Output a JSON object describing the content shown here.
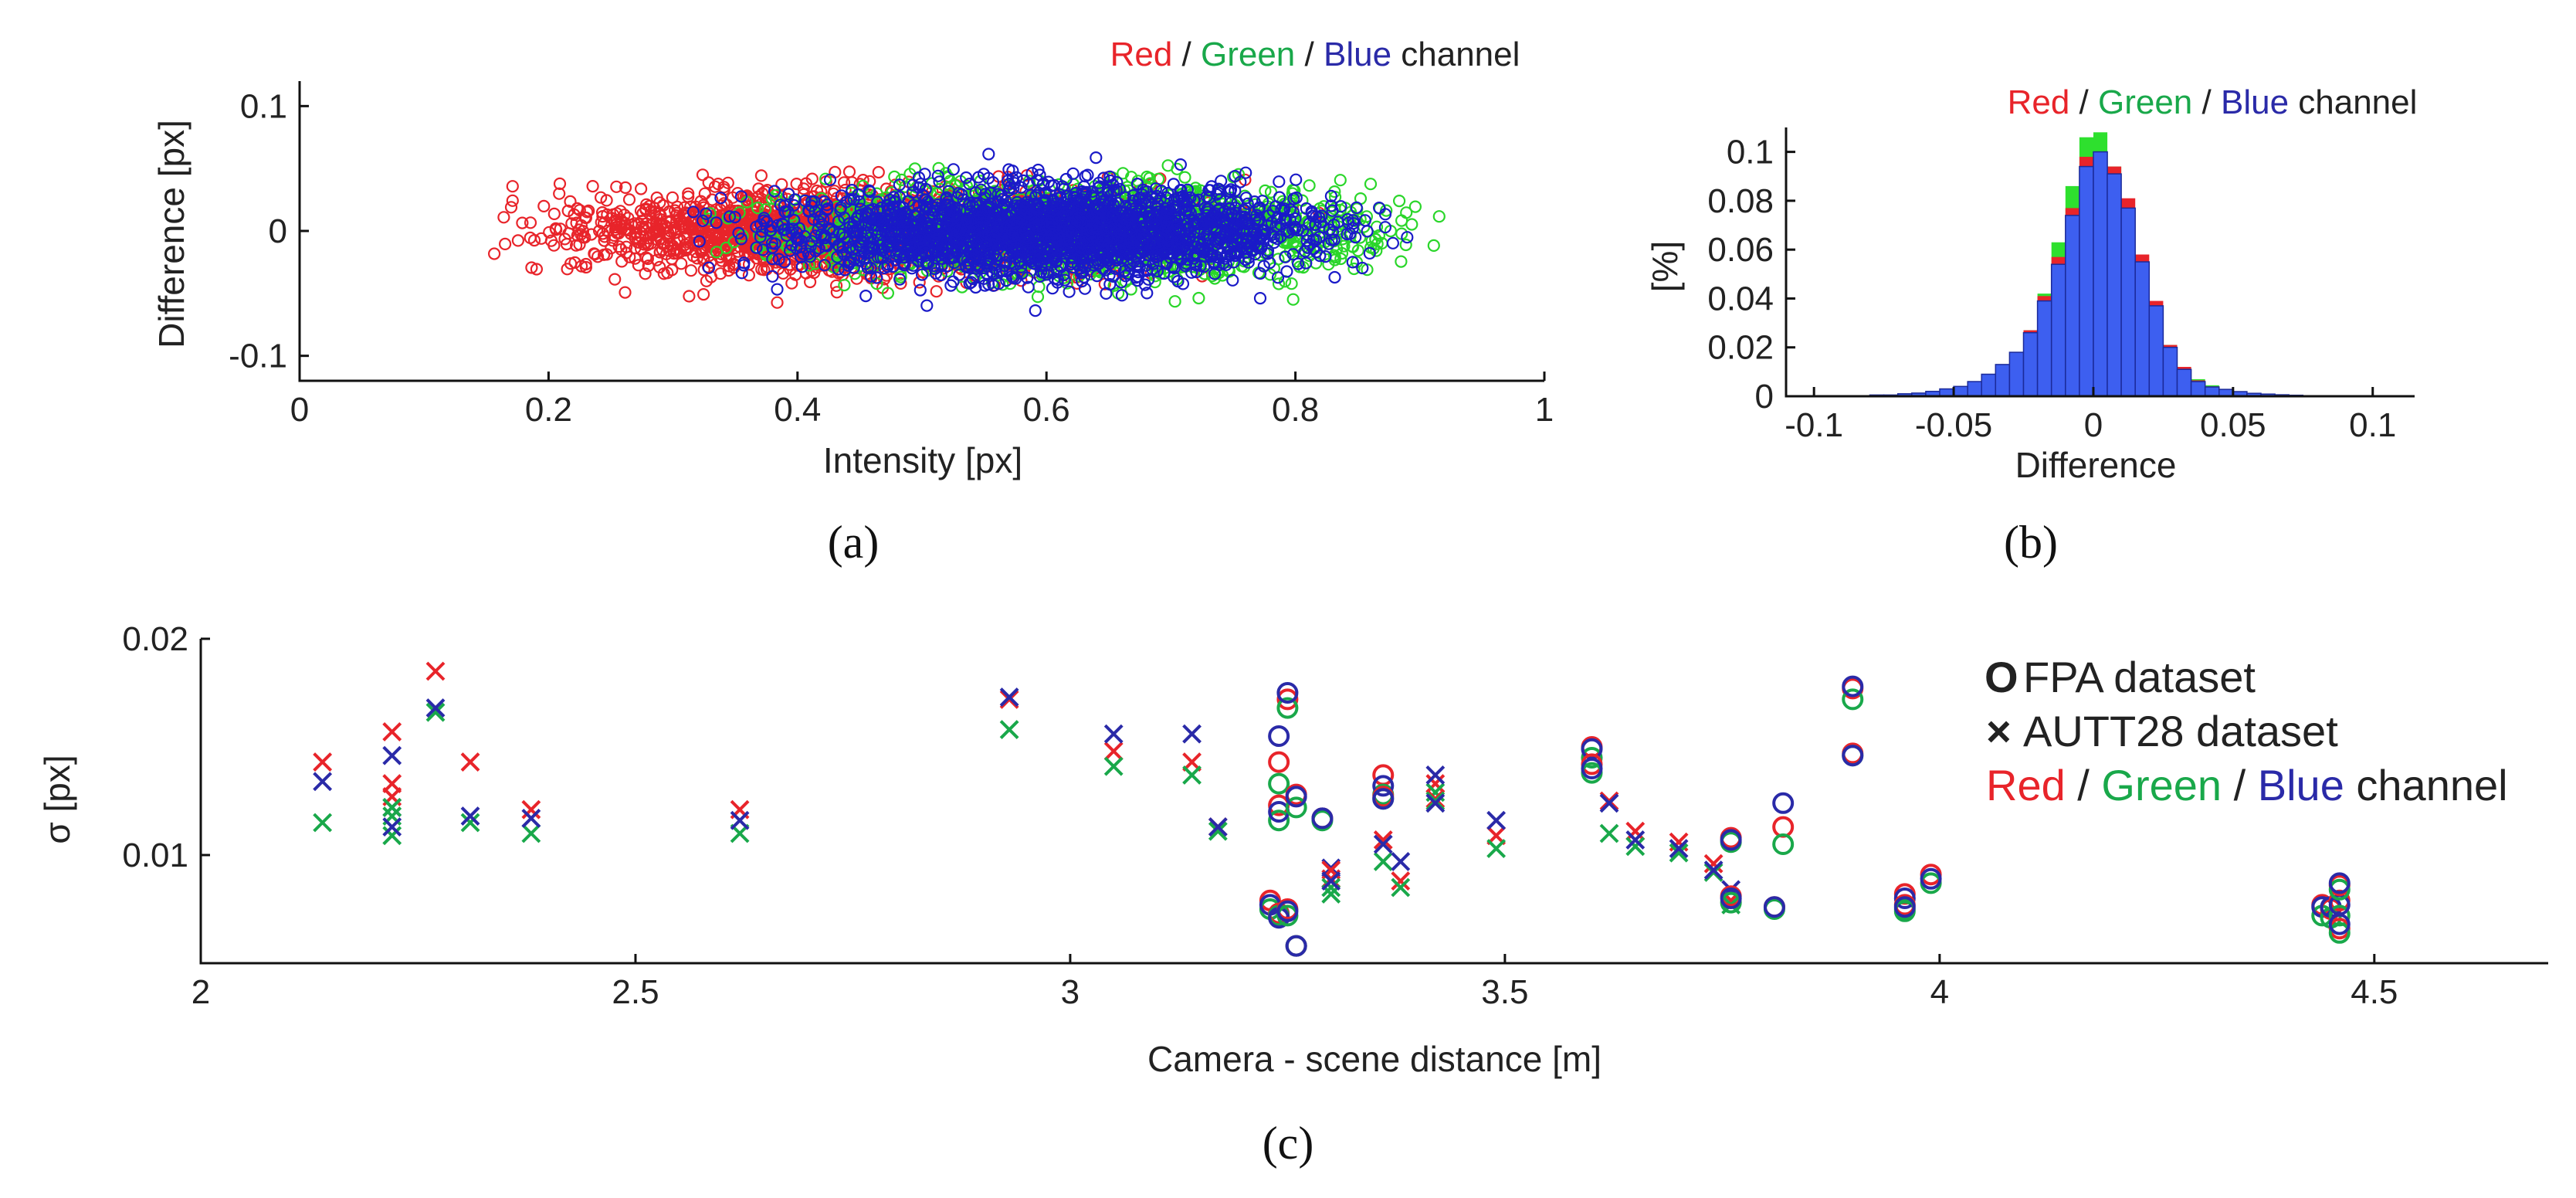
{
  "chart_data": [
    {
      "id": "a",
      "type": "scatter",
      "panel_label": "(a)",
      "title_parts": [
        {
          "text": "Red",
          "color": "#e8242a"
        },
        {
          "text": " / ",
          "color": "#222222"
        },
        {
          "text": "Green",
          "color": "#19a84a"
        },
        {
          "text": " / ",
          "color": "#222222"
        },
        {
          "text": "Blue",
          "color": "#2a2aa8"
        },
        {
          "text": " channel",
          "color": "#222222"
        }
      ],
      "xlabel": "Intensity [px]",
      "ylabel": "Difference [px]",
      "xlim": [
        0,
        1
      ],
      "ylim": [
        -0.12,
        0.12
      ],
      "xticks": [
        0,
        0.2,
        0.4,
        0.6,
        0.8,
        1
      ],
      "xtick_labels": [
        "0",
        "0.2",
        "0.4",
        "0.6",
        "0.8",
        "1"
      ],
      "yticks": [
        -0.1,
        0,
        0.1
      ],
      "ytick_labels": [
        "-0.1",
        "0",
        "0.1"
      ],
      "marker": "circle-open",
      "series": [
        {
          "name": "Red",
          "color": "#e8242a",
          "x_range": [
            0.14,
            0.83
          ],
          "sigma": 0.017,
          "points": 2000
        },
        {
          "name": "Green",
          "color": "#2ad62a",
          "x_range": [
            0.3,
            0.95
          ],
          "sigma": 0.017,
          "points": 2000
        },
        {
          "name": "Blue",
          "color": "#1a1ac8",
          "x_range": [
            0.29,
            0.92
          ],
          "sigma": 0.018,
          "points": 2200
        }
      ]
    },
    {
      "id": "b",
      "type": "bar",
      "panel_label": "(b)",
      "title_parts": [
        {
          "text": "Red",
          "color": "#e8242a"
        },
        {
          "text": " / ",
          "color": "#222222"
        },
        {
          "text": "Green",
          "color": "#19a84a"
        },
        {
          "text": " / ",
          "color": "#222222"
        },
        {
          "text": "Blue",
          "color": "#2a2aa8"
        },
        {
          "text": " channel",
          "color": "#222222"
        }
      ],
      "xlabel": "Difference",
      "ylabel": "[%]",
      "xlim": [
        -0.11,
        0.115
      ],
      "ylim": [
        0,
        0.11
      ],
      "xticks": [
        -0.1,
        -0.05,
        0,
        0.05,
        0.1
      ],
      "xtick_labels": [
        "-0.1",
        "-0.05",
        "0",
        "0.05",
        "0.1"
      ],
      "yticks": [
        0,
        0.02,
        0.04,
        0.06,
        0.08,
        0.1
      ],
      "ytick_labels": [
        "0",
        "0.02",
        "0.04",
        "0.06",
        "0.08",
        "0.1"
      ],
      "bin_width": 0.005,
      "bin_centers": [
        -0.0775,
        -0.0725,
        -0.0675,
        -0.0625,
        -0.0575,
        -0.0525,
        -0.0475,
        -0.0425,
        -0.0375,
        -0.0325,
        -0.0275,
        -0.0225,
        -0.0175,
        -0.0125,
        -0.0075,
        -0.0025,
        0.0025,
        0.0075,
        0.0125,
        0.0175,
        0.0225,
        0.0275,
        0.0325,
        0.0375,
        0.0425,
        0.0475,
        0.0525,
        0.0575,
        0.0625,
        0.0675,
        0.0725
      ],
      "series": [
        {
          "name": "Green",
          "color": "#2ee02e",
          "values": [
            0.0006,
            0.0006,
            0.001,
            0.0014,
            0.002,
            0.003,
            0.004,
            0.006,
            0.009,
            0.013,
            0.018,
            0.027,
            0.042,
            0.063,
            0.086,
            0.106,
            0.108,
            0.094,
            0.074,
            0.052,
            0.034,
            0.021,
            0.012,
            0.007,
            0.0045,
            0.003,
            0.002,
            0.0014,
            0.001,
            0.0008,
            0.0005
          ]
        },
        {
          "name": "Red",
          "color": "#e8242a",
          "values": [
            0.0005,
            0.0005,
            0.001,
            0.0013,
            0.002,
            0.003,
            0.004,
            0.006,
            0.009,
            0.013,
            0.018,
            0.027,
            0.041,
            0.057,
            0.077,
            0.098,
            0.1,
            0.094,
            0.081,
            0.058,
            0.039,
            0.021,
            0.012,
            0.0065,
            0.004,
            0.003,
            0.002,
            0.0013,
            0.001,
            0.0007,
            0.0005
          ]
        },
        {
          "name": "Blue",
          "color": "#3d5ff0",
          "values": [
            0.0005,
            0.0005,
            0.001,
            0.0013,
            0.002,
            0.003,
            0.004,
            0.006,
            0.009,
            0.013,
            0.018,
            0.026,
            0.039,
            0.054,
            0.074,
            0.094,
            0.1,
            0.091,
            0.077,
            0.055,
            0.037,
            0.02,
            0.011,
            0.006,
            0.0038,
            0.0028,
            0.0019,
            0.0012,
            0.0009,
            0.0006,
            0.0004
          ]
        }
      ]
    },
    {
      "id": "c",
      "type": "scatter",
      "panel_label": "(c)",
      "xlabel": "Camera - scene distance [m]",
      "ylabel": "σ [px]",
      "xlim": [
        2,
        4.7
      ],
      "ylim": [
        0.005,
        0.02
      ],
      "xticks": [
        2,
        2.5,
        3,
        3.5,
        4,
        4.5
      ],
      "xtick_labels": [
        "2",
        "2.5",
        "3",
        "3.5",
        "4",
        "4.5"
      ],
      "yticks": [
        0.01,
        0.02
      ],
      "ytick_labels": [
        "0.01",
        "0.02"
      ],
      "legend": {
        "position": "top-right",
        "entries": [
          {
            "symbol": "O",
            "label": "FPA dataset"
          },
          {
            "symbol": "×",
            "label": "AUTT28 dataset"
          }
        ],
        "channel_parts": [
          {
            "text": "Red",
            "color": "#e8242a"
          },
          {
            "text": " / ",
            "color": "#222222"
          },
          {
            "text": "Green",
            "color": "#19a84a"
          },
          {
            "text": " / ",
            "color": "#222222"
          },
          {
            "text": "Blue",
            "color": "#2a2aa8"
          },
          {
            "text": " channel",
            "color": "#222222"
          }
        ]
      },
      "series": [
        {
          "name": "AUTT28 dataset",
          "marker": "cross",
          "points": [
            {
              "x": 2.14,
              "r": 0.0143,
              "g": 0.0115,
              "b": 0.0134
            },
            {
              "x": 2.22,
              "r": 0.0157,
              "g": 0.0109,
              "b": 0.0146
            },
            {
              "x": 2.22,
              "r": 0.0133,
              "g": 0.0118,
              "b": 0.0122
            },
            {
              "x": 2.22,
              "r": 0.0127,
              "g": 0.0122,
              "b": 0.0113
            },
            {
              "x": 2.27,
              "r": 0.0185,
              "g": 0.0166,
              "b": 0.0168
            },
            {
              "x": 2.31,
              "r": 0.0143,
              "g": 0.0115,
              "b": 0.0118
            },
            {
              "x": 2.38,
              "r": 0.0121,
              "g": 0.011,
              "b": 0.0117
            },
            {
              "x": 2.62,
              "r": 0.0121,
              "g": 0.011,
              "b": 0.0116
            },
            {
              "x": 2.93,
              "r": 0.0172,
              "g": 0.0158,
              "b": 0.0173
            },
            {
              "x": 3.05,
              "r": 0.0148,
              "g": 0.0141,
              "b": 0.0156
            },
            {
              "x": 3.14,
              "r": 0.0143,
              "g": 0.0137,
              "b": 0.0156
            },
            {
              "x": 3.17,
              "r": 0.0113,
              "g": 0.0111,
              "b": 0.0113
            },
            {
              "x": 3.3,
              "r": 0.0089,
              "g": 0.0082,
              "b": 0.0094
            },
            {
              "x": 3.3,
              "r": 0.0093,
              "g": 0.0085,
              "b": 0.0088
            },
            {
              "x": 3.36,
              "r": 0.0107,
              "g": 0.0097,
              "b": 0.0105
            },
            {
              "x": 3.38,
              "r": 0.0088,
              "g": 0.0085,
              "b": 0.0097
            },
            {
              "x": 3.42,
              "r": 0.0133,
              "g": 0.0129,
              "b": 0.0137
            },
            {
              "x": 3.42,
              "r": 0.0126,
              "g": 0.0125,
              "b": 0.0124
            },
            {
              "x": 3.49,
              "r": 0.0109,
              "g": 0.0103,
              "b": 0.0116
            },
            {
              "x": 3.62,
              "r": 0.0125,
              "g": 0.011,
              "b": 0.0124
            },
            {
              "x": 3.65,
              "r": 0.0111,
              "g": 0.0104,
              "b": 0.0107
            },
            {
              "x": 3.7,
              "r": 0.0106,
              "g": 0.0101,
              "b": 0.0103
            },
            {
              "x": 3.74,
              "r": 0.0096,
              "g": 0.0092,
              "b": 0.0093
            },
            {
              "x": 3.76,
              "r": 0.0079,
              "g": 0.0077,
              "b": 0.0084
            }
          ]
        },
        {
          "name": "FPA dataset",
          "marker": "circle-open",
          "points": [
            {
              "x": 3.23,
              "r": 0.0079,
              "g": 0.0075,
              "b": 0.0077
            },
            {
              "x": 3.24,
              "r": 0.0143,
              "g": 0.0133,
              "b": 0.0155
            },
            {
              "x": 3.24,
              "r": 0.0123,
              "g": 0.0116,
              "b": 0.012
            },
            {
              "x": 3.24,
              "r": 0.0073,
              "g": 0.0072,
              "b": 0.0071
            },
            {
              "x": 3.25,
              "r": 0.0172,
              "g": 0.0168,
              "b": 0.0175
            },
            {
              "x": 3.25,
              "r": 0.0075,
              "g": 0.0072,
              "b": 0.0074
            },
            {
              "x": 3.26,
              "r": 0.0128,
              "g": 0.0122,
              "b": 0.0127
            },
            {
              "x": 3.26,
              "r": 0.0058,
              "g": 0.0058,
              "b": 0.0058
            },
            {
              "x": 3.29,
              "r": 0.0117,
              "g": 0.0116,
              "b": 0.0117
            },
            {
              "x": 3.36,
              "r": 0.0137,
              "g": 0.0128,
              "b": 0.0132
            },
            {
              "x": 3.36,
              "r": 0.0127,
              "g": 0.0126,
              "b": 0.0126
            },
            {
              "x": 3.6,
              "r": 0.015,
              "g": 0.0145,
              "b": 0.0149
            },
            {
              "x": 3.6,
              "r": 0.0142,
              "g": 0.0138,
              "b": 0.014
            },
            {
              "x": 3.76,
              "r": 0.0108,
              "g": 0.0106,
              "b": 0.0107
            },
            {
              "x": 3.76,
              "r": 0.0081,
              "g": 0.0078,
              "b": 0.008
            },
            {
              "x": 3.81,
              "r": 0.0076,
              "g": 0.0075,
              "b": 0.0076
            },
            {
              "x": 3.82,
              "r": 0.0113,
              "g": 0.0105,
              "b": 0.0124
            },
            {
              "x": 3.9,
              "r": 0.0177,
              "g": 0.0172,
              "b": 0.0178
            },
            {
              "x": 3.9,
              "r": 0.0147,
              "g": 0.0146,
              "b": 0.0146
            },
            {
              "x": 3.96,
              "r": 0.0082,
              "g": 0.0074,
              "b": 0.008
            },
            {
              "x": 3.96,
              "r": 0.0077,
              "g": 0.0075,
              "b": 0.0076
            },
            {
              "x": 3.99,
              "r": 0.0091,
              "g": 0.0087,
              "b": 0.0089
            },
            {
              "x": 4.44,
              "r": 0.0077,
              "g": 0.0072,
              "b": 0.0076
            },
            {
              "x": 4.45,
              "r": 0.0075,
              "g": 0.0071,
              "b": 0.0076
            },
            {
              "x": 4.46,
              "r": 0.0079,
              "g": 0.0072,
              "b": 0.0077
            },
            {
              "x": 4.46,
              "r": 0.0066,
              "g": 0.0064,
              "b": 0.0068
            },
            {
              "x": 4.46,
              "r": 0.0086,
              "g": 0.0084,
              "b": 0.0087
            }
          ]
        }
      ]
    }
  ]
}
